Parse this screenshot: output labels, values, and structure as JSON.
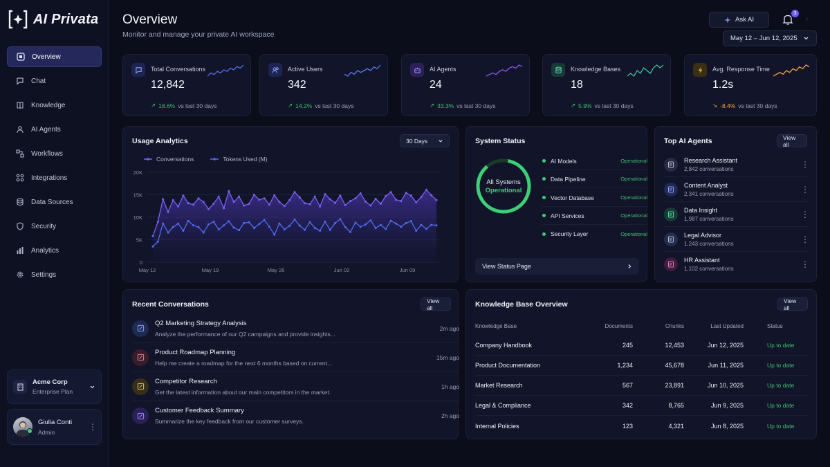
{
  "app": {
    "name": "AI Privata"
  },
  "nav": [
    {
      "label": "Overview",
      "icon": "grid-icon",
      "active": true
    },
    {
      "label": "Chat",
      "icon": "chat-icon"
    },
    {
      "label": "Knowledge",
      "icon": "book-icon"
    },
    {
      "label": "AI Agents",
      "icon": "agents-icon"
    },
    {
      "label": "Workflows",
      "icon": "workflow-icon"
    },
    {
      "label": "Integrations",
      "icon": "integrations-icon"
    },
    {
      "label": "Data Sources",
      "icon": "database-icon"
    },
    {
      "label": "Security",
      "icon": "shield-icon"
    },
    {
      "label": "Analytics",
      "icon": "analytics-icon"
    },
    {
      "label": "Settings",
      "icon": "gear-icon"
    }
  ],
  "org": {
    "name": "Acme Corp",
    "plan": "Enterprise Plan"
  },
  "user": {
    "name": "Giulia Conti",
    "role": "Admin"
  },
  "header": {
    "title": "Overview",
    "subtitle": "Monitor and manage your private AI workspace",
    "ask_label": "Ask AI",
    "notifications": "3",
    "date_range": "May 12 – Jun 12, 2025"
  },
  "stats": [
    {
      "label": "Total Conversations",
      "value": "12,842",
      "delta": "18.6%",
      "delta_suffix": "vs last 30 days",
      "trend": "up",
      "color": "#5b6cf0",
      "spark": [
        4,
        6,
        5,
        7,
        6,
        8,
        7,
        9,
        8,
        10,
        9,
        11
      ]
    },
    {
      "label": "Active Users",
      "value": "342",
      "delta": "14.2%",
      "delta_suffix": "vs last 30 days",
      "trend": "up",
      "color": "#5b7cf0",
      "spark": [
        5,
        4,
        6,
        5,
        7,
        6,
        7,
        8,
        7,
        9,
        8,
        10
      ]
    },
    {
      "label": "AI Agents",
      "value": "24",
      "delta": "33.3%",
      "delta_suffix": "vs last 30 days",
      "trend": "up",
      "color": "#8a5cf0",
      "spark": [
        3,
        4,
        5,
        4,
        6,
        7,
        6,
        8,
        9,
        8,
        10,
        9
      ]
    },
    {
      "label": "Knowledge Bases",
      "value": "18",
      "delta": "5.9%",
      "delta_suffix": "vs last 30 days",
      "trend": "up",
      "color": "#3fbf9c",
      "spark": [
        5,
        6,
        5,
        7,
        6,
        8,
        7,
        6,
        8,
        9,
        8,
        9
      ]
    },
    {
      "label": "Avg. Response Time",
      "value": "1.2s",
      "delta": "-8.4%",
      "delta_suffix": "vs last 30 days",
      "trend": "down",
      "color": "#f0a53c",
      "spark": [
        4,
        5,
        6,
        5,
        7,
        6,
        8,
        7,
        9,
        8,
        10,
        9
      ]
    }
  ],
  "usage": {
    "title": "Usage Analytics",
    "range_label": "30 Days",
    "legend": [
      "Conversations",
      "Tokens Used (M)"
    ]
  },
  "chart_data": {
    "type": "area",
    "x_ticks": [
      "May 12",
      "May 19",
      "May 26",
      "Jun 02",
      "Jun 09"
    ],
    "y_ticks": [
      "20K",
      "15K",
      "10K",
      "5K",
      "0"
    ],
    "ylim": [
      0,
      20000
    ],
    "series": [
      {
        "name": "Conversations",
        "color": "#7a62f5",
        "values": [
          5800,
          9000,
          14000,
          11200,
          13800,
          12400,
          14800,
          13100,
          12800,
          14200,
          13400,
          11800,
          13000,
          14600,
          12000,
          15800,
          13400,
          14600,
          12600,
          13000,
          15000,
          13900,
          14200,
          12800,
          14900,
          13400,
          12500,
          13800,
          15600,
          14400,
          13100,
          12900,
          14600,
          12400,
          15100,
          14000,
          13200,
          14800,
          12700,
          13600,
          14200,
          15300,
          13500,
          12600,
          14100,
          13000,
          14700,
          15600,
          13900,
          13600,
          15400,
          14800,
          13300,
          14500,
          16100,
          14900,
          13800
        ]
      },
      {
        "name": "Tokens Used (M)",
        "color": "#4f6cf2",
        "values": [
          3500,
          4600,
          8600,
          6600,
          7800,
          8600,
          7000,
          9200,
          8200,
          7800,
          6600,
          8400,
          9000,
          7300,
          8200,
          9100,
          7700,
          7100,
          8700,
          8900,
          7600,
          8500,
          9400,
          7900,
          6100,
          8600,
          7300,
          8100,
          9500,
          8100,
          7200,
          8900,
          7600,
          7000,
          9000,
          7200,
          8700,
          9600,
          7800,
          6700,
          8800,
          7900,
          8400,
          9300,
          7600,
          8300,
          7400,
          9200,
          8600,
          7900,
          8700,
          9100,
          7000,
          8300,
          7400,
          8300,
          8200
        ]
      }
    ]
  },
  "system": {
    "title": "System Status",
    "ring_label": "All Systems",
    "ring_status": "Operational",
    "items": [
      {
        "name": "AI Models",
        "status": "Operational"
      },
      {
        "name": "Data Pipeline",
        "status": "Operational"
      },
      {
        "name": "Vector Database",
        "status": "Operational"
      },
      {
        "name": "API Services",
        "status": "Operational"
      },
      {
        "name": "Security Layer",
        "status": "Operational"
      }
    ],
    "link_label": "View Status Page"
  },
  "agents": {
    "title": "Top AI Agents",
    "view_all": "View all",
    "items": [
      {
        "name": "Research Assistant",
        "count": "2,842 conversations",
        "color": "#8f98c9"
      },
      {
        "name": "Content Analyst",
        "count": "2,341 conversations",
        "color": "#6f86e8"
      },
      {
        "name": "Data Insight",
        "count": "1,987 conversations",
        "color": "#5fbf9a"
      },
      {
        "name": "Legal Advisor",
        "count": "1,243 conversations",
        "color": "#9aa4d4"
      },
      {
        "name": "HR Assistant",
        "count": "1,102 conversations",
        "color": "#d064b8"
      }
    ]
  },
  "recent": {
    "title": "Recent Conversations",
    "view_all": "View all",
    "items": [
      {
        "title": "Q2 Marketing Strategy Analysis",
        "preview": "Analyze the performance of our Q2 campaigns and provide insights...",
        "time": "2m ago",
        "color": "#5b7cf0"
      },
      {
        "title": "Product Roadmap Planning",
        "preview": "Help me create a roadmap for the next 6 months based on current...",
        "time": "15m ago",
        "color": "#e0607e"
      },
      {
        "title": "Competitor Research",
        "preview": "Get the latest information about our main competitors in the market.",
        "time": "1h ago",
        "color": "#d9b34a"
      },
      {
        "title": "Customer Feedback Summary",
        "preview": "Summarize the key feedback from our customer surveys.",
        "time": "2h ago",
        "color": "#8a6cf0"
      }
    ]
  },
  "kb": {
    "title": "Knowledge Base Overview",
    "view_all": "View all",
    "headers": [
      "Knowledge Base",
      "Documents",
      "Chunks",
      "Last Updated",
      "Status"
    ],
    "rows": [
      [
        "Company Handbook",
        "245",
        "12,453",
        "Jun 12, 2025",
        "Up to date"
      ],
      [
        "Product Documentation",
        "1,234",
        "45,678",
        "Jun 11, 2025",
        "Up to date"
      ],
      [
        "Market Research",
        "567",
        "23,891",
        "Jun 10, 2025",
        "Up to date"
      ],
      [
        "Legal & Compliance",
        "342",
        "8,765",
        "Jun 9, 2025",
        "Up to date"
      ],
      [
        "Internal Policies",
        "123",
        "4,321",
        "Jun 8, 2025",
        "Up to date"
      ]
    ]
  }
}
